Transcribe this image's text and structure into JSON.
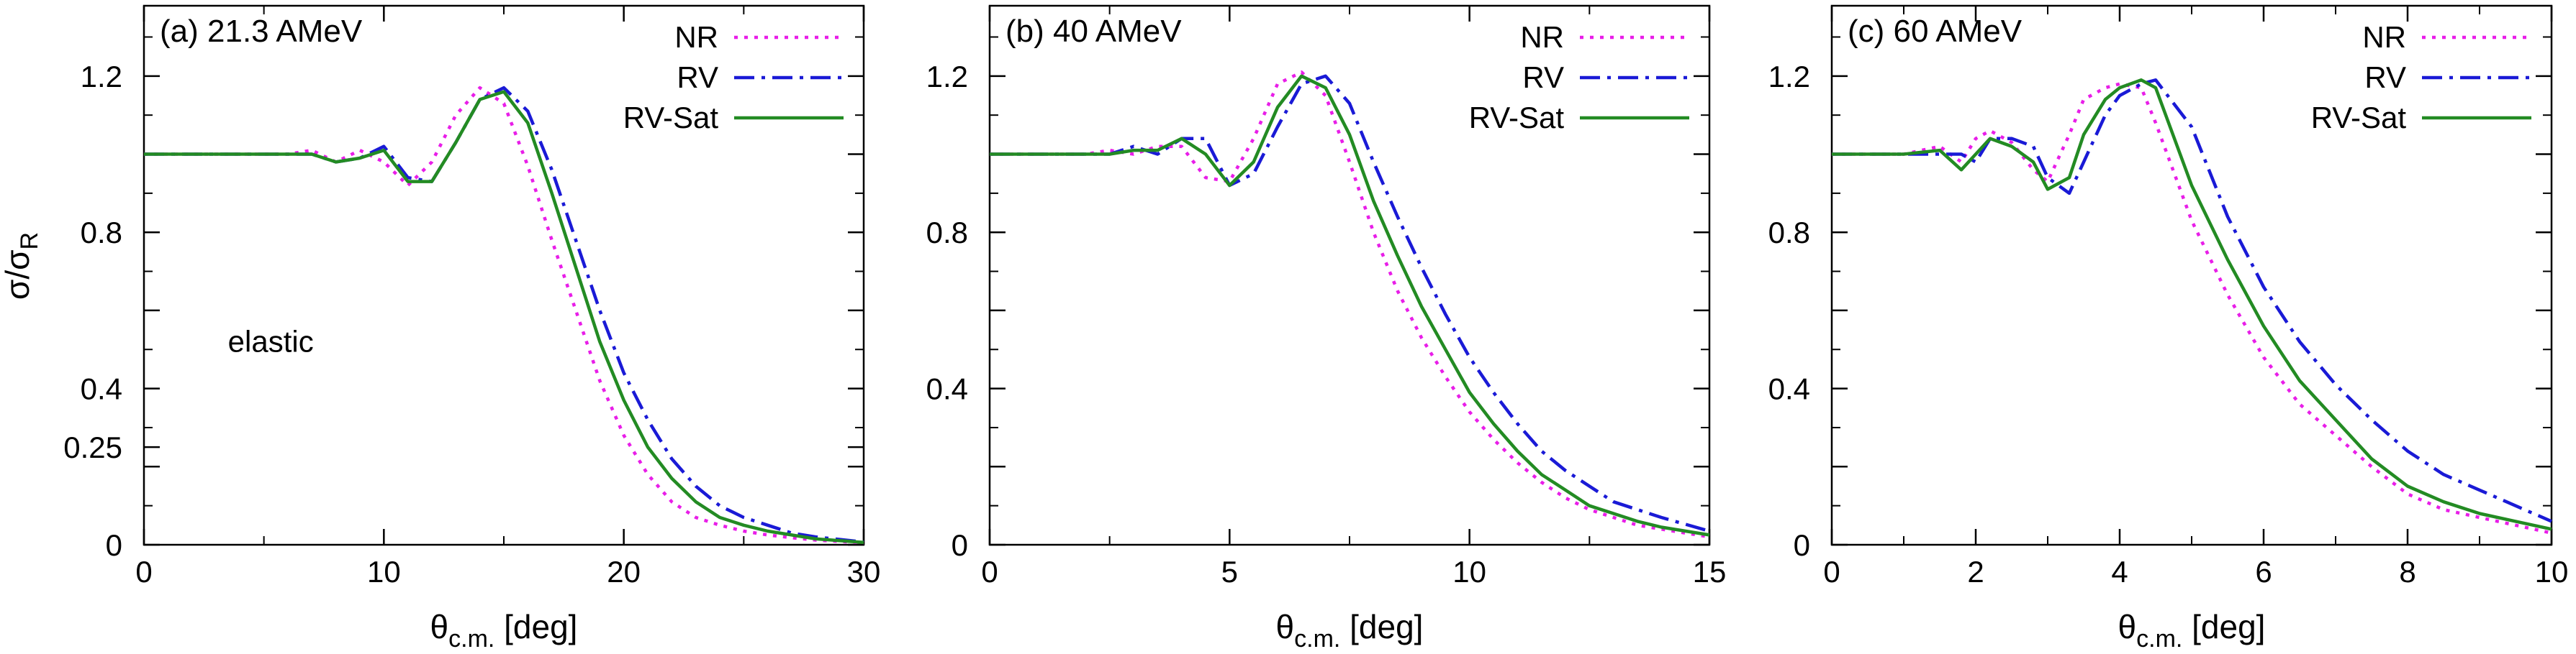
{
  "figure": {
    "ylabel": {
      "main": "σ/σ",
      "sub": "R"
    },
    "xlabel": {
      "main": "θ",
      "sub": "c.m.",
      "rest": " [deg]"
    }
  },
  "chart_data": [
    {
      "type": "line",
      "title": "(a) 21.3 AMeV",
      "annotation": "elastic",
      "xlim": [
        0,
        30
      ],
      "ylim": [
        0,
        1.38
      ],
      "xticks": [
        0,
        10,
        20,
        30
      ],
      "yticks": [
        0,
        0.25,
        0.4,
        0.8,
        1.2
      ],
      "yticks_unlabeled": [
        0.2,
        0.6,
        1.0
      ],
      "grid": false,
      "legend_position": "top-right",
      "series": [
        {
          "name": "NR",
          "color": "#e81ee8",
          "dash": "dotted",
          "x": [
            0,
            2,
            4,
            5,
            6,
            7,
            8,
            9,
            10,
            11,
            12,
            13,
            14,
            15,
            16,
            17,
            18,
            19,
            20,
            21,
            22,
            23,
            24,
            25,
            26,
            27,
            28,
            30
          ],
          "y": [
            1.0,
            1.0,
            1.0,
            1.0,
            1.0,
            1.01,
            0.98,
            1.01,
            0.98,
            0.92,
            0.98,
            1.1,
            1.17,
            1.13,
            0.97,
            0.78,
            0.6,
            0.42,
            0.28,
            0.18,
            0.11,
            0.07,
            0.05,
            0.035,
            0.025,
            0.018,
            0.012,
            0.005
          ]
        },
        {
          "name": "RV",
          "color": "#1a1ad6",
          "dash": "dashdot",
          "x": [
            0,
            2,
            4,
            5,
            6,
            7,
            8,
            9,
            10,
            11,
            12,
            13,
            14,
            15,
            16,
            17,
            18,
            19,
            20,
            21,
            22,
            23,
            24,
            25,
            26,
            27,
            28,
            30
          ],
          "y": [
            1.0,
            1.0,
            1.0,
            1.0,
            1.0,
            1.0,
            0.98,
            0.99,
            1.02,
            0.94,
            0.93,
            1.03,
            1.14,
            1.17,
            1.11,
            0.96,
            0.78,
            0.6,
            0.44,
            0.32,
            0.22,
            0.15,
            0.1,
            0.07,
            0.05,
            0.03,
            0.02,
            0.007
          ]
        },
        {
          "name": "RV-Sat",
          "color": "#238b23",
          "dash": "solid",
          "x": [
            0,
            2,
            4,
            5,
            6,
            7,
            8,
            9,
            10,
            11,
            12,
            13,
            14,
            15,
            16,
            17,
            18,
            19,
            20,
            21,
            22,
            23,
            24,
            25,
            26,
            27,
            28,
            30
          ],
          "y": [
            1.0,
            1.0,
            1.0,
            1.0,
            1.0,
            1.0,
            0.98,
            0.99,
            1.01,
            0.93,
            0.93,
            1.03,
            1.14,
            1.16,
            1.08,
            0.9,
            0.71,
            0.52,
            0.37,
            0.25,
            0.17,
            0.11,
            0.07,
            0.05,
            0.035,
            0.025,
            0.015,
            0.006
          ]
        }
      ]
    },
    {
      "type": "line",
      "title": "(b) 40 AMeV",
      "xlim": [
        0,
        15
      ],
      "ylim": [
        0,
        1.38
      ],
      "xticks": [
        0,
        5,
        10,
        15
      ],
      "yticks": [
        0,
        0.4,
        0.8,
        1.2
      ],
      "yticks_unlabeled": [
        0.2,
        0.6,
        1.0
      ],
      "grid": false,
      "legend_position": "top-right",
      "series": [
        {
          "name": "NR",
          "color": "#e81ee8",
          "dash": "dotted",
          "x": [
            0,
            1,
            2,
            2.5,
            3,
            3.5,
            4,
            4.5,
            5,
            5.5,
            6,
            6.5,
            7,
            7.5,
            8,
            8.5,
            9,
            9.5,
            10,
            10.5,
            11,
            11.5,
            12,
            12.5,
            13,
            13.5,
            14,
            15
          ],
          "y": [
            1.0,
            1.0,
            1.0,
            1.01,
            1.0,
            1.02,
            1.02,
            0.94,
            0.93,
            1.04,
            1.18,
            1.21,
            1.15,
            0.98,
            0.8,
            0.65,
            0.53,
            0.43,
            0.34,
            0.27,
            0.21,
            0.16,
            0.12,
            0.09,
            0.07,
            0.05,
            0.04,
            0.02
          ]
        },
        {
          "name": "RV",
          "color": "#1a1ad6",
          "dash": "dashdot",
          "x": [
            0,
            1,
            2,
            2.5,
            3,
            3.5,
            4,
            4.5,
            5,
            5.5,
            6,
            6.5,
            7,
            7.5,
            8,
            8.5,
            9,
            9.5,
            10,
            10.5,
            11,
            11.5,
            12,
            12.5,
            13,
            13.5,
            14,
            15
          ],
          "y": [
            1.0,
            1.0,
            1.0,
            1.0,
            1.02,
            1.0,
            1.04,
            1.04,
            0.92,
            0.95,
            1.07,
            1.18,
            1.2,
            1.13,
            0.98,
            0.84,
            0.71,
            0.59,
            0.48,
            0.39,
            0.31,
            0.24,
            0.19,
            0.15,
            0.11,
            0.09,
            0.07,
            0.035
          ]
        },
        {
          "name": "RV-Sat",
          "color": "#238b23",
          "dash": "solid",
          "x": [
            0,
            1,
            2,
            2.5,
            3,
            3.5,
            4,
            4.5,
            5,
            5.5,
            6,
            6.5,
            7,
            7.5,
            8,
            8.5,
            9,
            9.5,
            10,
            10.5,
            11,
            11.5,
            12,
            12.5,
            13,
            13.5,
            14,
            15
          ],
          "y": [
            1.0,
            1.0,
            1.0,
            1.0,
            1.01,
            1.01,
            1.04,
            1.0,
            0.92,
            0.98,
            1.12,
            1.2,
            1.17,
            1.05,
            0.88,
            0.74,
            0.61,
            0.5,
            0.39,
            0.31,
            0.24,
            0.18,
            0.14,
            0.1,
            0.08,
            0.06,
            0.045,
            0.025
          ]
        }
      ]
    },
    {
      "type": "line",
      "title": "(c) 60 AMeV",
      "xlim": [
        0,
        10
      ],
      "ylim": [
        0,
        1.38
      ],
      "xticks": [
        0,
        2,
        4,
        6,
        8,
        10
      ],
      "yticks": [
        0,
        0.4,
        0.8,
        1.2
      ],
      "yticks_unlabeled": [
        0.2,
        0.6,
        1.0
      ],
      "grid": false,
      "legend_position": "top-right",
      "series": [
        {
          "name": "NR",
          "color": "#e81ee8",
          "dash": "dotted",
          "x": [
            0,
            0.5,
            1,
            1.5,
            1.8,
            2,
            2.2,
            2.5,
            2.8,
            3,
            3.3,
            3.5,
            3.8,
            4,
            4.3,
            4.5,
            5,
            5.5,
            6,
            6.5,
            7,
            7.5,
            8,
            8.5,
            9,
            9.5,
            10
          ],
          "y": [
            1.0,
            1.0,
            1.0,
            1.02,
            0.98,
            1.04,
            1.06,
            1.03,
            0.96,
            0.93,
            1.05,
            1.14,
            1.17,
            1.18,
            1.17,
            1.08,
            0.83,
            0.64,
            0.48,
            0.36,
            0.28,
            0.2,
            0.13,
            0.09,
            0.07,
            0.05,
            0.03
          ]
        },
        {
          "name": "RV",
          "color": "#1a1ad6",
          "dash": "dashdot",
          "x": [
            0,
            0.5,
            1,
            1.5,
            1.8,
            2,
            2.2,
            2.5,
            2.8,
            3,
            3.3,
            3.5,
            3.8,
            4,
            4.3,
            4.5,
            5,
            5.5,
            6,
            6.5,
            7,
            7.5,
            8,
            8.5,
            9,
            9.5,
            10
          ],
          "y": [
            1.0,
            1.0,
            1.0,
            1.0,
            1.0,
            0.98,
            1.04,
            1.04,
            1.02,
            0.94,
            0.9,
            0.98,
            1.1,
            1.15,
            1.18,
            1.19,
            1.07,
            0.84,
            0.66,
            0.52,
            0.41,
            0.32,
            0.24,
            0.18,
            0.14,
            0.1,
            0.06
          ]
        },
        {
          "name": "RV-Sat",
          "color": "#238b23",
          "dash": "solid",
          "x": [
            0,
            0.5,
            1,
            1.5,
            1.8,
            2,
            2.2,
            2.5,
            2.8,
            3,
            3.3,
            3.5,
            3.8,
            4,
            4.3,
            4.5,
            5,
            5.5,
            6,
            6.5,
            7,
            7.5,
            8,
            8.5,
            9,
            9.5,
            10
          ],
          "y": [
            1.0,
            1.0,
            1.0,
            1.01,
            0.96,
            1.0,
            1.04,
            1.02,
            0.98,
            0.91,
            0.94,
            1.05,
            1.14,
            1.17,
            1.19,
            1.17,
            0.92,
            0.73,
            0.56,
            0.42,
            0.32,
            0.22,
            0.15,
            0.11,
            0.08,
            0.06,
            0.04
          ]
        }
      ]
    }
  ]
}
